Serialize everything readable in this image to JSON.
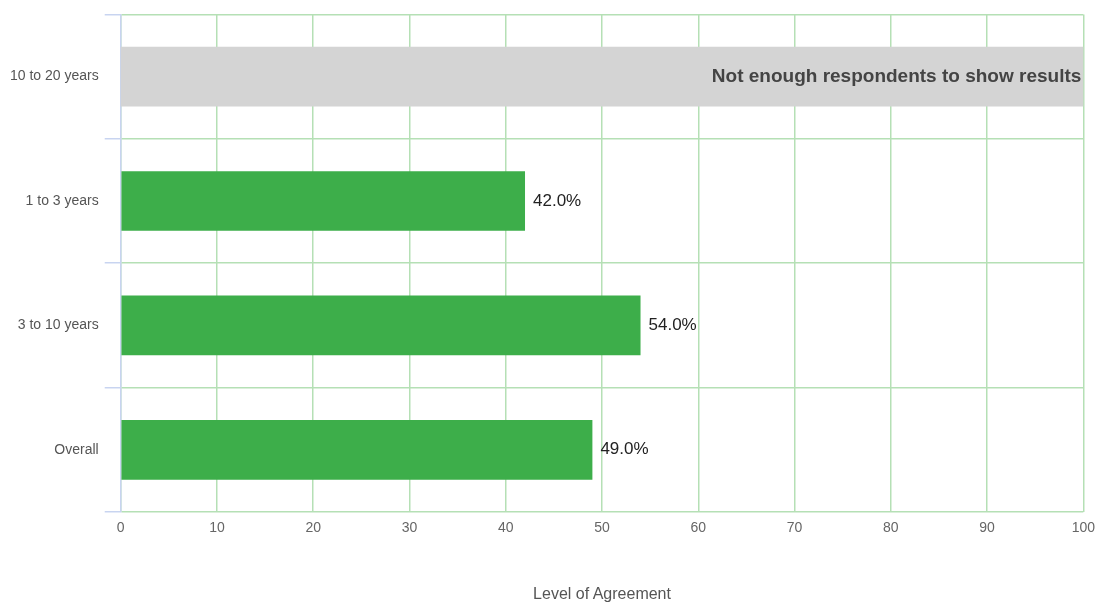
{
  "chart_data": {
    "type": "bar",
    "orientation": "horizontal",
    "xlabel": "Level of Agreement",
    "categories": [
      "10 to 20 years",
      "1 to 3 years",
      "3 to 10 years",
      "Overall"
    ],
    "values": [
      null,
      42,
      54,
      49
    ],
    "color": "#3dae4a",
    "value_labels": [
      null,
      "42.0%",
      "54.0%",
      "49.0%"
    ],
    "bands": [
      {
        "axis": "y",
        "from": "10 to 20 years",
        "to": "10 to 20 years",
        "label": "Not enough respondents to show results",
        "color": "#d4d4d4"
      }
    ],
    "xlim": [
      0,
      100
    ],
    "xticks": [
      0,
      10,
      20,
      30,
      40,
      50,
      60,
      70,
      80,
      90,
      100
    ],
    "grid": true,
    "legend": false
  }
}
